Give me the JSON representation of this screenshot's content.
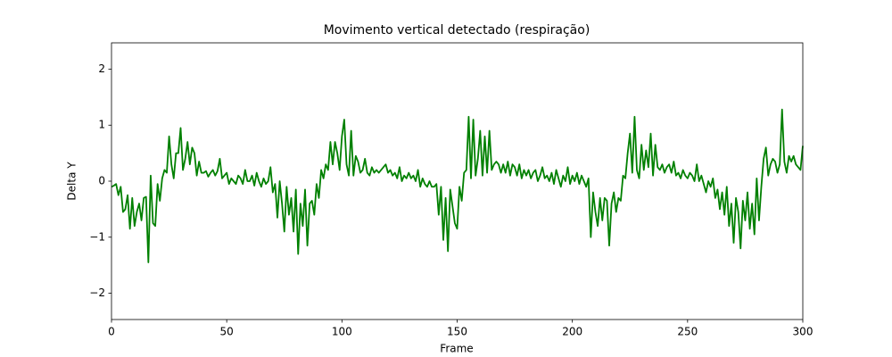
{
  "chart_data": {
    "type": "line",
    "title": "Movimento vertical detectado (respiração)",
    "x_label": "Frame",
    "y_label": "Delta Y",
    "color": "#008000",
    "xlim": [
      0,
      300
    ],
    "xticks": [
      0,
      50,
      100,
      150,
      200,
      250,
      300
    ],
    "ylim": [
      -2.47,
      2.47
    ],
    "yticks": [
      {
        "value": -2,
        "label": "−2"
      },
      {
        "value": -1,
        "label": "−1"
      },
      0,
      1,
      2
    ],
    "x": [
      0,
      1,
      2,
      3,
      4,
      5,
      6,
      7,
      8,
      9,
      10,
      11,
      12,
      13,
      14,
      15,
      16,
      17,
      18,
      19,
      20,
      21,
      22,
      23,
      24,
      25,
      26,
      27,
      28,
      29,
      30,
      31,
      32,
      33,
      34,
      35,
      36,
      37,
      38,
      39,
      40,
      41,
      42,
      43,
      44,
      45,
      46,
      47,
      48,
      49,
      50,
      51,
      52,
      53,
      54,
      55,
      56,
      57,
      58,
      59,
      60,
      61,
      62,
      63,
      64,
      65,
      66,
      67,
      68,
      69,
      70,
      71,
      72,
      73,
      74,
      75,
      76,
      77,
      78,
      79,
      80,
      81,
      82,
      83,
      84,
      85,
      86,
      87,
      88,
      89,
      90,
      91,
      92,
      93,
      94,
      95,
      96,
      97,
      98,
      99,
      100,
      101,
      102,
      103,
      104,
      105,
      106,
      107,
      108,
      109,
      110,
      111,
      112,
      113,
      114,
      115,
      116,
      117,
      118,
      119,
      120,
      121,
      122,
      123,
      124,
      125,
      126,
      127,
      128,
      129,
      130,
      131,
      132,
      133,
      134,
      135,
      136,
      137,
      138,
      139,
      140,
      141,
      142,
      143,
      144,
      145,
      146,
      147,
      148,
      149,
      150,
      151,
      152,
      153,
      154,
      155,
      156,
      157,
      158,
      159,
      160,
      161,
      162,
      163,
      164,
      165,
      166,
      167,
      168,
      169,
      170,
      171,
      172,
      173,
      174,
      175,
      176,
      177,
      178,
      179,
      180,
      181,
      182,
      183,
      184,
      185,
      186,
      187,
      188,
      189,
      190,
      191,
      192,
      193,
      194,
      195,
      196,
      197,
      198,
      199,
      200,
      201,
      202,
      203,
      204,
      205,
      206,
      207,
      208,
      209,
      210,
      211,
      212,
      213,
      214,
      215,
      216,
      217,
      218,
      219,
      220,
      221,
      222,
      223,
      224,
      225,
      226,
      227,
      228,
      229,
      230,
      231,
      232,
      233,
      234,
      235,
      236,
      237,
      238,
      239,
      240,
      241,
      242,
      243,
      244,
      245,
      246,
      247,
      248,
      249,
      250,
      251,
      252,
      253,
      254,
      255,
      256,
      257,
      258,
      259,
      260,
      261,
      262,
      263,
      264,
      265,
      266,
      267,
      268,
      269,
      270,
      271,
      272,
      273,
      274,
      275,
      276,
      277,
      278,
      279,
      280,
      281,
      282,
      283,
      284,
      285,
      286,
      287,
      288,
      289,
      290,
      291,
      292,
      293,
      294,
      295,
      296,
      297,
      298,
      299,
      300
    ],
    "values": [
      -0.1,
      -0.08,
      -0.05,
      -0.25,
      -0.1,
      -0.55,
      -0.5,
      -0.25,
      -0.85,
      -0.3,
      -0.8,
      -0.55,
      -0.4,
      -0.7,
      -0.3,
      -0.28,
      -1.45,
      0.1,
      -0.75,
      -0.8,
      -0.05,
      -0.35,
      0.05,
      0.2,
      0.15,
      0.8,
      0.3,
      0.05,
      0.5,
      0.5,
      0.95,
      0.2,
      0.4,
      0.7,
      0.3,
      0.6,
      0.5,
      0.1,
      0.35,
      0.15,
      0.15,
      0.18,
      0.08,
      0.15,
      0.2,
      0.1,
      0.18,
      0.4,
      0.05,
      0.1,
      0.15,
      -0.05,
      0.05,
      0.0,
      -0.05,
      0.1,
      0.05,
      -0.05,
      0.2,
      0.0,
      0.0,
      0.1,
      -0.08,
      0.15,
      0.0,
      -0.1,
      0.05,
      -0.05,
      0.0,
      0.25,
      -0.2,
      -0.05,
      -0.65,
      0.0,
      -0.4,
      -0.9,
      -0.1,
      -0.6,
      -0.3,
      -0.9,
      -0.15,
      -1.3,
      -0.4,
      -0.8,
      -0.15,
      -1.15,
      -0.4,
      -0.35,
      -0.6,
      -0.05,
      -0.3,
      0.2,
      0.05,
      0.3,
      0.2,
      0.7,
      0.3,
      0.7,
      0.5,
      0.2,
      0.8,
      1.1,
      0.3,
      0.1,
      0.9,
      0.1,
      0.45,
      0.35,
      0.15,
      0.2,
      0.4,
      0.15,
      0.1,
      0.25,
      0.15,
      0.2,
      0.15,
      0.2,
      0.25,
      0.3,
      0.15,
      0.2,
      0.1,
      0.15,
      0.05,
      0.25,
      0.0,
      0.1,
      0.05,
      0.15,
      0.05,
      0.1,
      0.0,
      0.2,
      -0.1,
      0.05,
      -0.05,
      -0.1,
      0.0,
      -0.1,
      -0.1,
      -0.05,
      -0.6,
      -0.1,
      -1.05,
      -0.3,
      -1.25,
      -0.15,
      -0.45,
      -0.75,
      -0.85,
      -0.1,
      -0.35,
      0.15,
      0.2,
      1.15,
      0.05,
      1.1,
      0.1,
      0.4,
      0.9,
      0.1,
      0.8,
      0.15,
      0.9,
      0.2,
      0.3,
      0.35,
      0.3,
      0.15,
      0.3,
      0.15,
      0.35,
      0.1,
      0.3,
      0.25,
      0.1,
      0.3,
      0.05,
      0.2,
      0.1,
      0.2,
      0.05,
      0.15,
      0.2,
      0.0,
      0.1,
      0.25,
      0.05,
      0.1,
      0.0,
      0.15,
      -0.05,
      0.2,
      0.05,
      -0.1,
      0.1,
      0.0,
      0.25,
      -0.05,
      0.1,
      0.0,
      0.15,
      -0.05,
      0.1,
      0.0,
      -0.1,
      0.05,
      -1.0,
      -0.2,
      -0.55,
      -0.8,
      -0.3,
      -0.7,
      -0.3,
      -0.35,
      -1.15,
      -0.4,
      -0.2,
      -0.55,
      -0.3,
      -0.35,
      0.1,
      0.05,
      0.5,
      0.85,
      0.15,
      1.15,
      0.2,
      0.05,
      0.65,
      0.2,
      0.55,
      0.25,
      0.85,
      0.1,
      0.65,
      0.25,
      0.2,
      0.3,
      0.15,
      0.25,
      0.3,
      0.15,
      0.35,
      0.1,
      0.15,
      0.05,
      0.2,
      0.1,
      0.05,
      0.15,
      0.1,
      0.0,
      0.3,
      0.0,
      0.1,
      -0.05,
      -0.2,
      0.0,
      -0.1,
      0.05,
      -0.3,
      -0.15,
      -0.5,
      -0.2,
      -0.6,
      -0.1,
      -0.8,
      -0.4,
      -1.1,
      -0.3,
      -0.55,
      -1.2,
      -0.35,
      -0.7,
      -0.2,
      -0.85,
      -0.4,
      -0.95,
      0.05,
      -0.7,
      -0.1,
      0.4,
      0.6,
      0.1,
      0.3,
      0.4,
      0.35,
      0.15,
      0.3,
      1.28,
      0.35,
      0.15,
      0.45,
      0.35,
      0.45,
      0.3,
      0.25,
      0.2,
      0.63
    ]
  }
}
